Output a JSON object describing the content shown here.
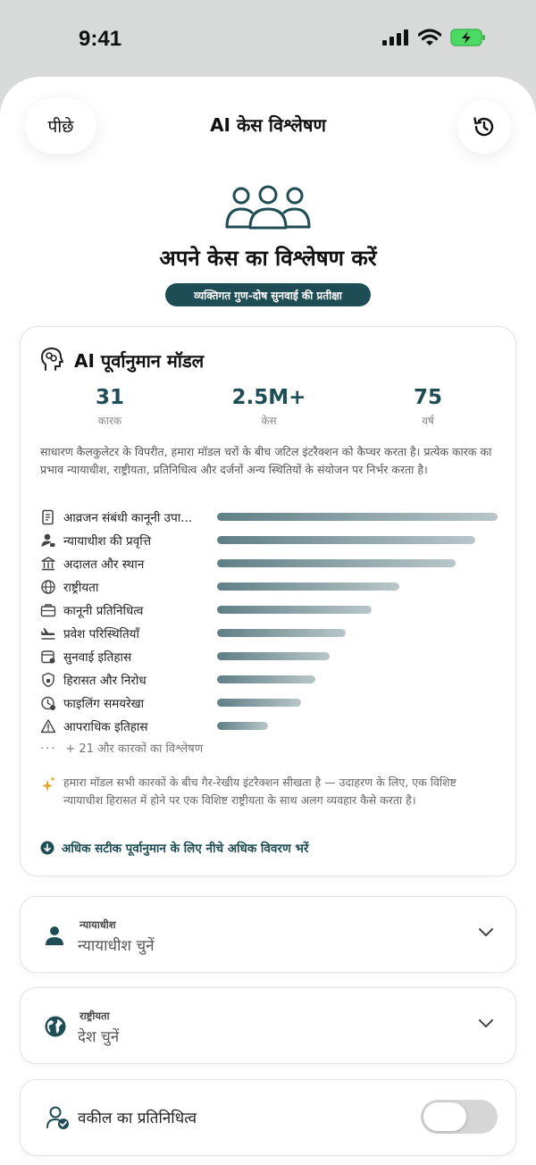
{
  "status_bar": {
    "time": "9:41"
  },
  "nav": {
    "back_label": "पीछे",
    "title": "AI केस विश्लेषण"
  },
  "hero": {
    "title": "अपने केस का विश्लेषण करें",
    "badge": "व्यक्तिगत गुण-दोष सुनवाई की प्रतीक्षा"
  },
  "model": {
    "title": "AI पूर्वानुमान मॉडल",
    "stats": [
      {
        "value": "31",
        "label": "कारक"
      },
      {
        "value": "2.5M+",
        "label": "केस"
      },
      {
        "value": "75",
        "label": "वर्ष"
      }
    ],
    "description": "साधारण कैलकुलेटर के विपरीत, हमारा मॉडल चरों के बीच जटिल इंटरैक्शन को कैप्चर करता है। प्रत्येक कारक का प्रभाव न्यायाधीश, राष्ट्रीयता, प्रतिनिधित्व और दर्जनों अन्य स्थितियों के संयोजन पर निर्भर करता है।",
    "factors": [
      {
        "label": "आव्रजन संबंधी कानूनी उपा...",
        "icon": "document-icon",
        "weight": 1.0
      },
      {
        "label": "न्यायाधीश की प्रवृत्ति",
        "icon": "judge-icon",
        "weight": 0.92
      },
      {
        "label": "अदालत और स्थान",
        "icon": "courthouse-icon",
        "weight": 0.85
      },
      {
        "label": "राष्ट्रीयता",
        "icon": "globe-icon",
        "weight": 0.65
      },
      {
        "label": "कानूनी प्रतिनिधित्व",
        "icon": "briefcase-icon",
        "weight": 0.55
      },
      {
        "label": "प्रवेश परिस्थितियाँ",
        "icon": "plane-icon",
        "weight": 0.46
      },
      {
        "label": "सुनवाई इतिहास",
        "icon": "calendar-icon",
        "weight": 0.4
      },
      {
        "label": "हिरासत और निरोध",
        "icon": "shield-icon",
        "weight": 0.35
      },
      {
        "label": "फाइलिंग समयरेखा",
        "icon": "clock-icon",
        "weight": 0.3
      },
      {
        "label": "आपराधिक इतिहास",
        "icon": "warning-icon",
        "weight": 0.18
      }
    ],
    "more_factors": "+ 21 और कारकों का विश्लेषण",
    "insight": "हमारा मॉडल सभी कारकों के बीच गैर-रेखीय इंटरैक्शन सीखता है — उदाहरण के लिए, एक विशिष्ट न्यायाधीश हिरासत में होने पर एक विशिष्ट राष्ट्रीयता के साथ अलग व्यवहार कैसे करता है।",
    "cta": "अधिक सटीक पूर्वानुमान के लिए नीचे अधिक विवरण भरें"
  },
  "judge_select": {
    "label": "न्यायाधीश",
    "value": "न्यायाधीश चुनें"
  },
  "nationality_select": {
    "label": "राष्ट्रीयता",
    "value": "देश चुनें"
  },
  "representation_toggle": {
    "label": "वकील का प्रतिनिधित्व",
    "on": false
  },
  "colors": {
    "accent": "#1e4d55",
    "bar_start": "#5f7f86",
    "bar_end": "#b8c6c9"
  }
}
